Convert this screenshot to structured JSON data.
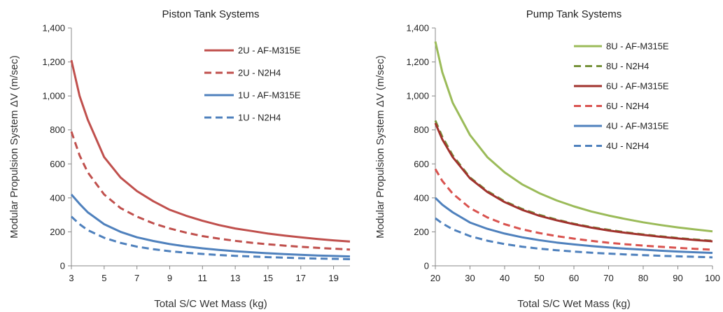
{
  "chart_data": [
    {
      "type": "line",
      "title": "Piston Tank Systems",
      "xlabel": "Total S/C Wet Mass (kg)",
      "ylabel": "Modular Propulsion System ΔV (m/sec)",
      "xlim": [
        3,
        20
      ],
      "ylim": [
        0,
        1400
      ],
      "xticks": [
        "3",
        "5",
        "7",
        "9",
        "11",
        "13",
        "15",
        "17",
        "19"
      ],
      "yticks": [
        "0",
        "200",
        "400",
        "600",
        "800",
        "1,000",
        "1,200",
        "1,400"
      ],
      "grid": false,
      "legend_position": "top-right",
      "series": [
        {
          "name": "2U - AF-M315E",
          "color": "#c0504d",
          "dashed": false,
          "x": [
            3,
            3.5,
            4,
            5,
            6,
            7,
            8,
            9,
            10,
            11,
            12,
            13,
            14,
            15,
            16,
            17,
            18,
            19,
            20
          ],
          "y": [
            1210,
            1000,
            860,
            640,
            520,
            440,
            380,
            330,
            295,
            265,
            240,
            220,
            205,
            190,
            178,
            168,
            158,
            150,
            143
          ]
        },
        {
          "name": "2U - N2H4",
          "color": "#c0504d",
          "dashed": true,
          "x": [
            3,
            3.5,
            4,
            5,
            6,
            7,
            8,
            9,
            10,
            11,
            12,
            13,
            14,
            15,
            16,
            17,
            18,
            19,
            20
          ],
          "y": [
            790,
            650,
            550,
            420,
            340,
            290,
            250,
            220,
            195,
            175,
            160,
            147,
            136,
            127,
            119,
            112,
            106,
            101,
            96
          ]
        },
        {
          "name": "1U - AF-M315E",
          "color": "#4f81bd",
          "dashed": false,
          "x": [
            3,
            3.5,
            4,
            5,
            6,
            7,
            8,
            9,
            10,
            11,
            12,
            13,
            14,
            15,
            16,
            17,
            18,
            19,
            20
          ],
          "y": [
            420,
            365,
            315,
            245,
            200,
            168,
            146,
            128,
            114,
            103,
            94,
            86,
            80,
            74,
            69,
            65,
            61,
            58,
            55
          ]
        },
        {
          "name": "1U - N2H4",
          "color": "#4f81bd",
          "dashed": true,
          "x": [
            3,
            3.5,
            4,
            5,
            6,
            7,
            8,
            9,
            10,
            11,
            12,
            13,
            14,
            15,
            16,
            17,
            18,
            19,
            20
          ],
          "y": [
            290,
            245,
            210,
            165,
            135,
            113,
            98,
            86,
            77,
            70,
            64,
            59,
            55,
            51,
            48,
            45,
            43,
            41,
            39
          ]
        }
      ]
    },
    {
      "type": "line",
      "title": "Pump Tank Systems",
      "xlabel": "Total S/C Wet Mass (kg)",
      "ylabel": "Modular Propulsion System ΔV (m/sec)",
      "xlim": [
        20,
        100
      ],
      "ylim": [
        0,
        1400
      ],
      "xticks": [
        "20",
        "30",
        "40",
        "50",
        "60",
        "70",
        "80",
        "90",
        "100"
      ],
      "yticks": [
        "0",
        "200",
        "400",
        "600",
        "800",
        "1,000",
        "1,200",
        "1,400"
      ],
      "grid": false,
      "legend_position": "top-right",
      "series": [
        {
          "name": "8U - AF-M315E",
          "color": "#9bbb59",
          "dashed": false,
          "x": [
            20,
            22,
            25,
            30,
            35,
            40,
            45,
            50,
            55,
            60,
            65,
            70,
            75,
            80,
            85,
            90,
            95,
            100
          ],
          "y": [
            1320,
            1140,
            960,
            770,
            640,
            550,
            480,
            428,
            385,
            350,
            320,
            296,
            275,
            256,
            240,
            226,
            214,
            203
          ]
        },
        {
          "name": "8U - N2H4",
          "color": "#77933c",
          "dashed": true,
          "x": [
            20,
            22,
            25,
            30,
            35,
            40,
            45,
            50,
            55,
            60,
            65,
            70,
            75,
            80,
            85,
            90,
            95,
            100
          ],
          "y": [
            855,
            760,
            650,
            520,
            440,
            380,
            335,
            300,
            272,
            248,
            228,
            212,
            197,
            185,
            174,
            164,
            155,
            147
          ]
        },
        {
          "name": "6U - AF-M315E",
          "color": "#a0322d",
          "dashed": false,
          "x": [
            20,
            22,
            25,
            30,
            35,
            40,
            45,
            50,
            55,
            60,
            65,
            70,
            75,
            80,
            85,
            90,
            95,
            100
          ],
          "y": [
            840,
            745,
            640,
            515,
            435,
            375,
            330,
            295,
            268,
            245,
            225,
            208,
            194,
            182,
            171,
            161,
            152,
            144
          ]
        },
        {
          "name": "6U - N2H4",
          "color": "#d9534f",
          "dashed": true,
          "x": [
            20,
            22,
            25,
            30,
            35,
            40,
            45,
            50,
            55,
            60,
            65,
            70,
            75,
            80,
            85,
            90,
            95,
            100
          ],
          "y": [
            570,
            500,
            425,
            340,
            285,
            245,
            215,
            193,
            175,
            160,
            147,
            136,
            127,
            119,
            112,
            106,
            100,
            95
          ]
        },
        {
          "name": "4U - AF-M315E",
          "color": "#4f81bd",
          "dashed": false,
          "x": [
            20,
            22,
            25,
            30,
            35,
            40,
            45,
            50,
            55,
            60,
            65,
            70,
            75,
            80,
            85,
            90,
            95,
            100
          ],
          "y": [
            400,
            360,
            315,
            255,
            218,
            190,
            168,
            151,
            137,
            126,
            116,
            108,
            101,
            95,
            89,
            84,
            80,
            76
          ]
        },
        {
          "name": "4U - N2H4",
          "color": "#4f81bd",
          "dashed": true,
          "x": [
            20,
            22,
            25,
            30,
            35,
            40,
            45,
            50,
            55,
            60,
            65,
            70,
            75,
            80,
            85,
            90,
            95,
            100
          ],
          "y": [
            280,
            250,
            215,
            175,
            148,
            128,
            113,
            101,
            92,
            84,
            77,
            72,
            67,
            63,
            59,
            56,
            53,
            50
          ]
        }
      ]
    }
  ]
}
